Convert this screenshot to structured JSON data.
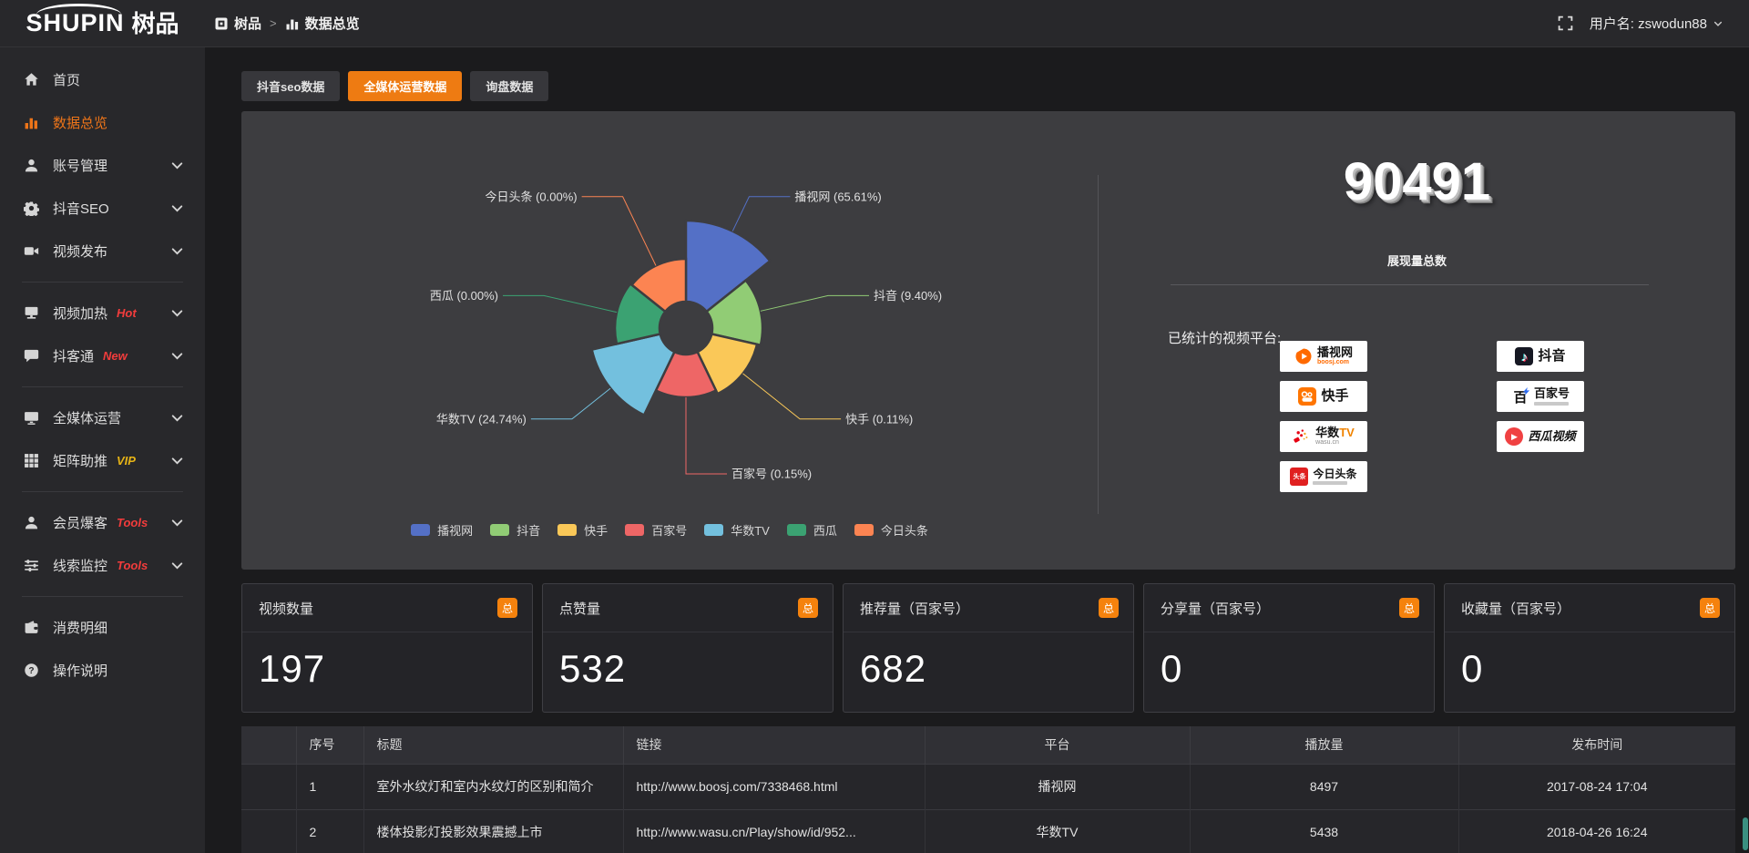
{
  "logo": {
    "brand": "SHUPIN",
    "brand_cn": "树品"
  },
  "topbar": {
    "breadcrumb": [
      {
        "label": "树品"
      },
      {
        "label": "数据总览"
      }
    ],
    "separator": ">",
    "username_label": "用户名: zswodun88"
  },
  "tabs": [
    {
      "label": "抖音seo数据",
      "active": false
    },
    {
      "label": "全媒体运营数据",
      "active": true
    },
    {
      "label": "询盘数据",
      "active": false
    }
  ],
  "sidebar": {
    "items": [
      {
        "label": "首页",
        "icon": "home"
      },
      {
        "label": "数据总览",
        "icon": "chart",
        "active": true
      },
      {
        "label": "账号管理",
        "icon": "user",
        "chevron": true
      },
      {
        "label": "抖音SEO",
        "icon": "gear",
        "chevron": true
      },
      {
        "label": "视频发布",
        "icon": "video",
        "chevron": true
      },
      {
        "divider": true
      },
      {
        "label": "视频加热",
        "icon": "screen",
        "badge": "Hot",
        "badge_color": "#f23c3c",
        "chevron": true
      },
      {
        "label": "抖客通",
        "icon": "chat",
        "badge": "New",
        "badge_color": "#f23c3c",
        "chevron": true
      },
      {
        "divider": true
      },
      {
        "label": "全媒体运营",
        "icon": "monitor",
        "chevron": true
      },
      {
        "label": "矩阵助推",
        "icon": "grid",
        "badge": "VIP",
        "badge_color": "#e7b416",
        "chevron": true
      },
      {
        "divider": true
      },
      {
        "label": "会员爆客",
        "icon": "user",
        "badge": "Tools",
        "badge_color": "#f23c3c",
        "chevron": true
      },
      {
        "label": "线索监控",
        "icon": "sliders",
        "badge": "Tools",
        "badge_color": "#f23c3c",
        "chevron": true
      },
      {
        "divider": true
      },
      {
        "label": "消费明细",
        "icon": "wallet"
      },
      {
        "label": "操作说明",
        "icon": "help"
      }
    ]
  },
  "chart_data": {
    "type": "pie",
    "variant": "nightingale-rose",
    "unit": "percent",
    "series": [
      {
        "name": "播视网",
        "value": 65.61,
        "label": "播视网 (65.61%)",
        "color": "#5470c6"
      },
      {
        "name": "抖音",
        "value": 9.4,
        "label": "抖音 (9.40%)",
        "color": "#91cc75"
      },
      {
        "name": "快手",
        "value": 0.11,
        "label": "快手 (0.11%)",
        "color": "#fac858"
      },
      {
        "name": "百家号",
        "value": 0.15,
        "label": "百家号 (0.15%)",
        "color": "#ee6666"
      },
      {
        "name": "华数TV",
        "value": 24.74,
        "label": "华数TV (24.74%)",
        "color": "#73c0de"
      },
      {
        "name": "西瓜",
        "value": 0.0,
        "label": "西瓜 (0.00%)",
        "color": "#3ba272"
      },
      {
        "name": "今日头条",
        "value": 0.0,
        "label": "今日头条 (0.00%)",
        "color": "#fc8452"
      }
    ],
    "legend": {
      "position": "bottom",
      "items": [
        "播视网",
        "抖音",
        "快手",
        "百家号",
        "华数TV",
        "西瓜",
        "今日头条"
      ]
    },
    "radii": [
      118,
      84,
      80,
      76,
      106,
      78,
      76
    ],
    "inner_radius": 29
  },
  "summary": {
    "total": "90491",
    "total_label": "展现量总数",
    "platforms_title": "已统计的视频平台:",
    "platform_columns": [
      [
        {
          "id": "boosj",
          "name": "播视网",
          "sub": "boosj.com"
        },
        {
          "id": "kuaishou",
          "name": "快手"
        },
        {
          "id": "wasu",
          "name": "华数TV",
          "sub": "wasu.cn"
        },
        {
          "id": "toutiao",
          "name": "今日头条"
        }
      ],
      [
        {
          "id": "douyin",
          "name": "抖音"
        },
        {
          "id": "baijiahao",
          "name": "百家号"
        },
        {
          "id": "xigua",
          "name": "西瓜视频"
        }
      ]
    ]
  },
  "stat_cards": [
    {
      "title": "视频数量",
      "badge": "总",
      "value": "197"
    },
    {
      "title": "点赞量",
      "badge": "总",
      "value": "532"
    },
    {
      "title": "推荐量（百家号）",
      "badge": "总",
      "value": "682"
    },
    {
      "title": "分享量（百家号）",
      "badge": "总",
      "value": "0"
    },
    {
      "title": "收藏量（百家号）",
      "badge": "总",
      "value": "0"
    }
  ],
  "table": {
    "headers": [
      "序号",
      "标题",
      "链接",
      "平台",
      "播放量",
      "发布时间"
    ],
    "rows": [
      {
        "no": "1",
        "title": "室外水纹灯和室内水纹灯的区别和简介",
        "link": "http://www.boosj.com/7338468.html",
        "platform": "播视网",
        "plays": "8497",
        "time": "2017-08-24 17:04"
      },
      {
        "no": "2",
        "title": "楼体投影灯投影效果震撼上市",
        "link": "http://www.wasu.cn/Play/show/id/952...",
        "platform": "华数TV",
        "plays": "5438",
        "time": "2018-04-26 16:24"
      }
    ]
  }
}
